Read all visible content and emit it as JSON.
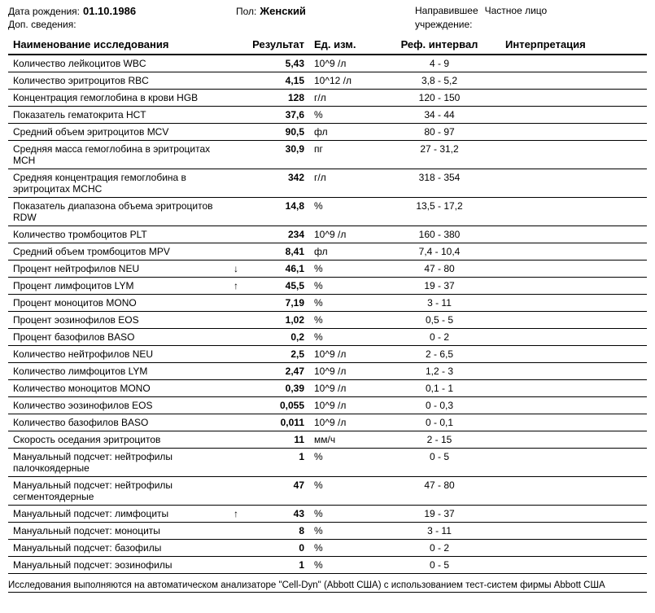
{
  "header": {
    "dob_label": "Дата рождения:",
    "dob_value": "01.10.1986",
    "sex_label": "Пол:",
    "sex_value": "Женский",
    "referrer_label": "Направившее",
    "referrer_value": "Частное лицо",
    "establishment_label": "учреждение:",
    "additional_label": "Доп. сведения:"
  },
  "columns": {
    "name": "Наименование исследования",
    "result": "Результат",
    "unit": "Ед. изм.",
    "ref": "Реф. интервал",
    "interp": "Интерпретация"
  },
  "rows": [
    {
      "name": "Количество лейкоцитов WBC",
      "arrow": "",
      "result": "5,43",
      "unit": "10^9 /л",
      "ref": "4 - 9"
    },
    {
      "name": "Количество эритроцитов RBC",
      "arrow": "",
      "result": "4,15",
      "unit": "10^12 /л",
      "ref": "3,8 - 5,2"
    },
    {
      "name": "Концентрация гемоглобина в крови HGB",
      "arrow": "",
      "result": "128",
      "unit": "г/л",
      "ref": "120 - 150"
    },
    {
      "name": "Показатель гематокрита HCT",
      "arrow": "",
      "result": "37,6",
      "unit": "%",
      "ref": "34 - 44"
    },
    {
      "name": "Средний объем эритроцитов MCV",
      "arrow": "",
      "result": "90,5",
      "unit": "фл",
      "ref": "80 - 97"
    },
    {
      "name": "Средняя масса гемоглобина в эритроцитах  MCH",
      "arrow": "",
      "result": "30,9",
      "unit": "пг",
      "ref": "27 - 31,2"
    },
    {
      "name": "Средняя концентрация гемоглобина в эритроцитах MCHC",
      "arrow": "",
      "result": "342",
      "unit": "г/л",
      "ref": "318 - 354"
    },
    {
      "name": "Показатель диапазона объема эритроцитов RDW",
      "arrow": "",
      "result": "14,8",
      "unit": "%",
      "ref": "13,5 - 17,2"
    },
    {
      "name": "Количество тромбоцитов PLT",
      "arrow": "",
      "result": "234",
      "unit": "10^9 /л",
      "ref": "160 - 380"
    },
    {
      "name": "Средний объем тромбоцитов MPV",
      "arrow": "",
      "result": "8,41",
      "unit": "фл",
      "ref": "7,4 - 10,4"
    },
    {
      "name": "Процент нейтрофилов NEU",
      "arrow": "↓",
      "result": "46,1",
      "unit": "%",
      "ref": "47 - 80"
    },
    {
      "name": "Процент лимфоцитов LYM",
      "arrow": "↑",
      "result": "45,5",
      "unit": "%",
      "ref": "19 - 37"
    },
    {
      "name": "Процент моноцитов MONO",
      "arrow": "",
      "result": "7,19",
      "unit": "%",
      "ref": "3 - 11"
    },
    {
      "name": "Процент эозинофилов EOS",
      "arrow": "",
      "result": "1,02",
      "unit": "%",
      "ref": "0,5 - 5"
    },
    {
      "name": "Процент базофилов BASO",
      "arrow": "",
      "result": "0,2",
      "unit": "%",
      "ref": "0 - 2"
    },
    {
      "name": "Количество нейтрофилов NEU",
      "arrow": "",
      "result": "2,5",
      "unit": "10^9 /л",
      "ref": "2 - 6,5"
    },
    {
      "name": "Количество лимфоцитов LYM",
      "arrow": "",
      "result": "2,47",
      "unit": "10^9 /л",
      "ref": "1,2 - 3"
    },
    {
      "name": "Количество моноцитов MONO",
      "arrow": "",
      "result": "0,39",
      "unit": "10^9 /л",
      "ref": "0,1 - 1"
    },
    {
      "name": "Количество эозинофилов EOS",
      "arrow": "",
      "result": "0,055",
      "unit": "10^9 /л",
      "ref": "0 - 0,3"
    },
    {
      "name": "Количество базофилов BASO",
      "arrow": "",
      "result": "0,011",
      "unit": "10^9 /л",
      "ref": "0 - 0,1"
    },
    {
      "name": "Скорость оседания эритроцитов",
      "arrow": "",
      "result": "11",
      "unit": "мм/ч",
      "ref": "2 - 15"
    },
    {
      "name": "Мануальный подсчет: нейтрофилы палочкоядерные",
      "arrow": "",
      "result": "1",
      "unit": "%",
      "ref": "0 - 5"
    },
    {
      "name": "Мануальный подсчет: нейтрофилы сегментоядерные",
      "arrow": "",
      "result": "47",
      "unit": "%",
      "ref": "47 - 80"
    },
    {
      "name": "Мануальный подсчет: лимфоциты",
      "arrow": "↑",
      "result": "43",
      "unit": "%",
      "ref": "19 - 37"
    },
    {
      "name": "Мануальный подсчет: моноциты",
      "arrow": "",
      "result": "8",
      "unit": "%",
      "ref": "3 - 11"
    },
    {
      "name": "Мануальный подсчет: базофилы",
      "arrow": "",
      "result": "0",
      "unit": "%",
      "ref": "0 - 2"
    },
    {
      "name": "Мануальный подсчет: эозинофилы",
      "arrow": "",
      "result": "1",
      "unit": "%",
      "ref": "0 - 5"
    }
  ],
  "footer": "Исследования выполняются на автоматическом анализаторе \"Cell-Dyn\" (Abbott США) с использованием тест-систем фирмы  Abbott США"
}
